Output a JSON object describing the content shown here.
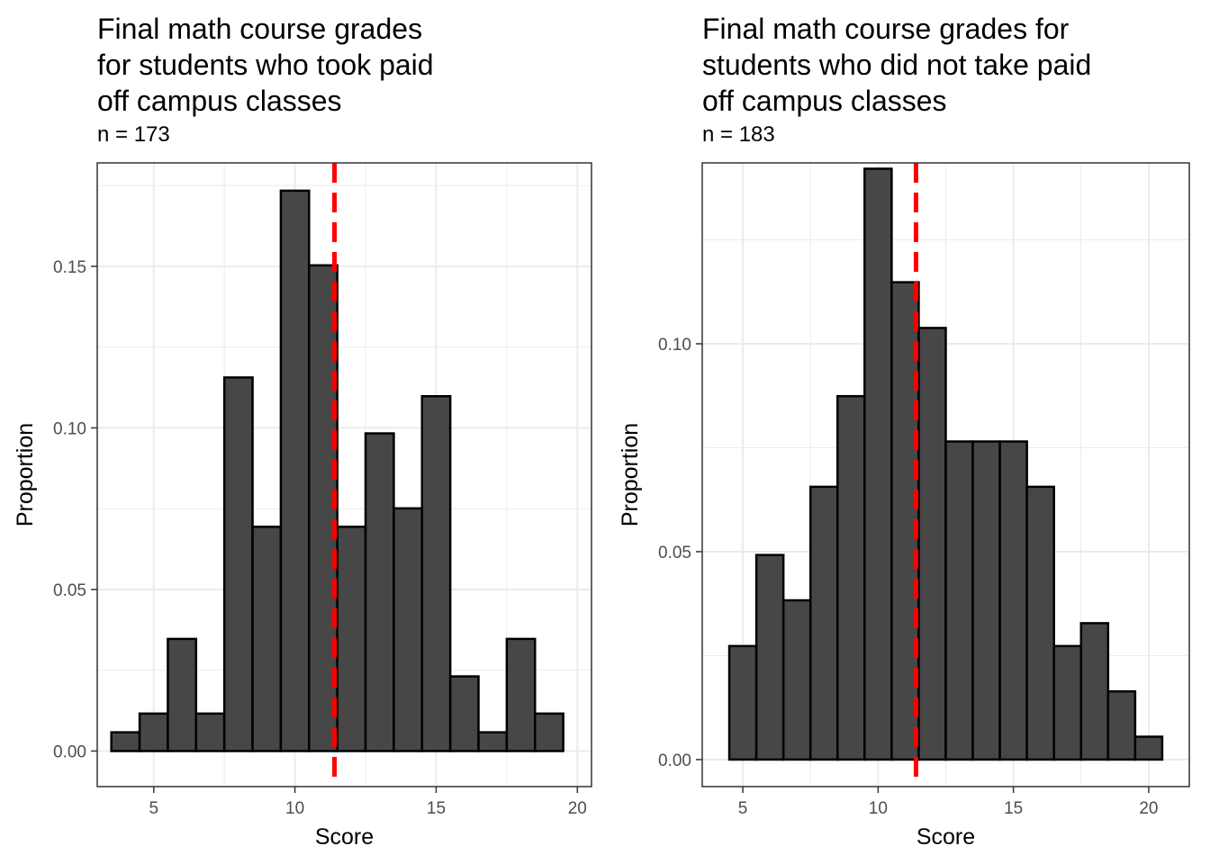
{
  "chart_data": [
    {
      "type": "bar",
      "title": "Final math course grades\nfor students who took paid\noff campus classes",
      "subtitle": "n = 173",
      "xlabel": "Score",
      "ylabel": "Proportion",
      "xlim": [
        3,
        20.5
      ],
      "ylim": [
        -0.011,
        0.182
      ],
      "x_ticks": [
        5,
        10,
        15,
        20
      ],
      "y_ticks": [
        0.0,
        0.05,
        0.1,
        0.15
      ],
      "y_tick_labels": [
        "0.00",
        "0.05",
        "0.10",
        "0.15"
      ],
      "bin_width": 1,
      "x": [
        4,
        5,
        6,
        7,
        8,
        9,
        10,
        11,
        12,
        13,
        14,
        15,
        16,
        17,
        18,
        19
      ],
      "values": [
        0.0058,
        0.0116,
        0.0347,
        0.0116,
        0.1156,
        0.0694,
        0.1734,
        0.1503,
        0.0694,
        0.0983,
        0.0751,
        0.1098,
        0.0231,
        0.0058,
        0.0347,
        0.0116
      ],
      "mean_line": 11.4,
      "grid": true,
      "colors": {
        "bar_fill": "#474747",
        "bar_edge": "#000000",
        "mean_line": "#ff0000",
        "grid": "#ebebeb"
      }
    },
    {
      "type": "bar",
      "title": "Final math course grades for\nstudents who did not take paid\noff campus classes",
      "subtitle": "n = 183",
      "xlabel": "Score",
      "ylabel": "Proportion",
      "xlim": [
        3.5,
        21.5
      ],
      "ylim": [
        -0.0065,
        0.1435
      ],
      "x_ticks": [
        5,
        10,
        15,
        20
      ],
      "y_ticks": [
        0.0,
        0.05,
        0.1
      ],
      "y_tick_labels": [
        "0.00",
        "0.05",
        "0.10"
      ],
      "bin_width": 1,
      "x": [
        5,
        6,
        7,
        8,
        9,
        10,
        11,
        12,
        13,
        14,
        15,
        16,
        17,
        18,
        19,
        20
      ],
      "values": [
        0.0273,
        0.0492,
        0.0383,
        0.0656,
        0.0874,
        0.1421,
        0.1148,
        0.1038,
        0.0765,
        0.0765,
        0.0765,
        0.0656,
        0.0273,
        0.0328,
        0.0164,
        0.0055
      ],
      "mean_line": 11.4,
      "grid": true,
      "colors": {
        "bar_fill": "#474747",
        "bar_edge": "#000000",
        "mean_line": "#ff0000",
        "grid": "#ebebeb"
      }
    }
  ]
}
